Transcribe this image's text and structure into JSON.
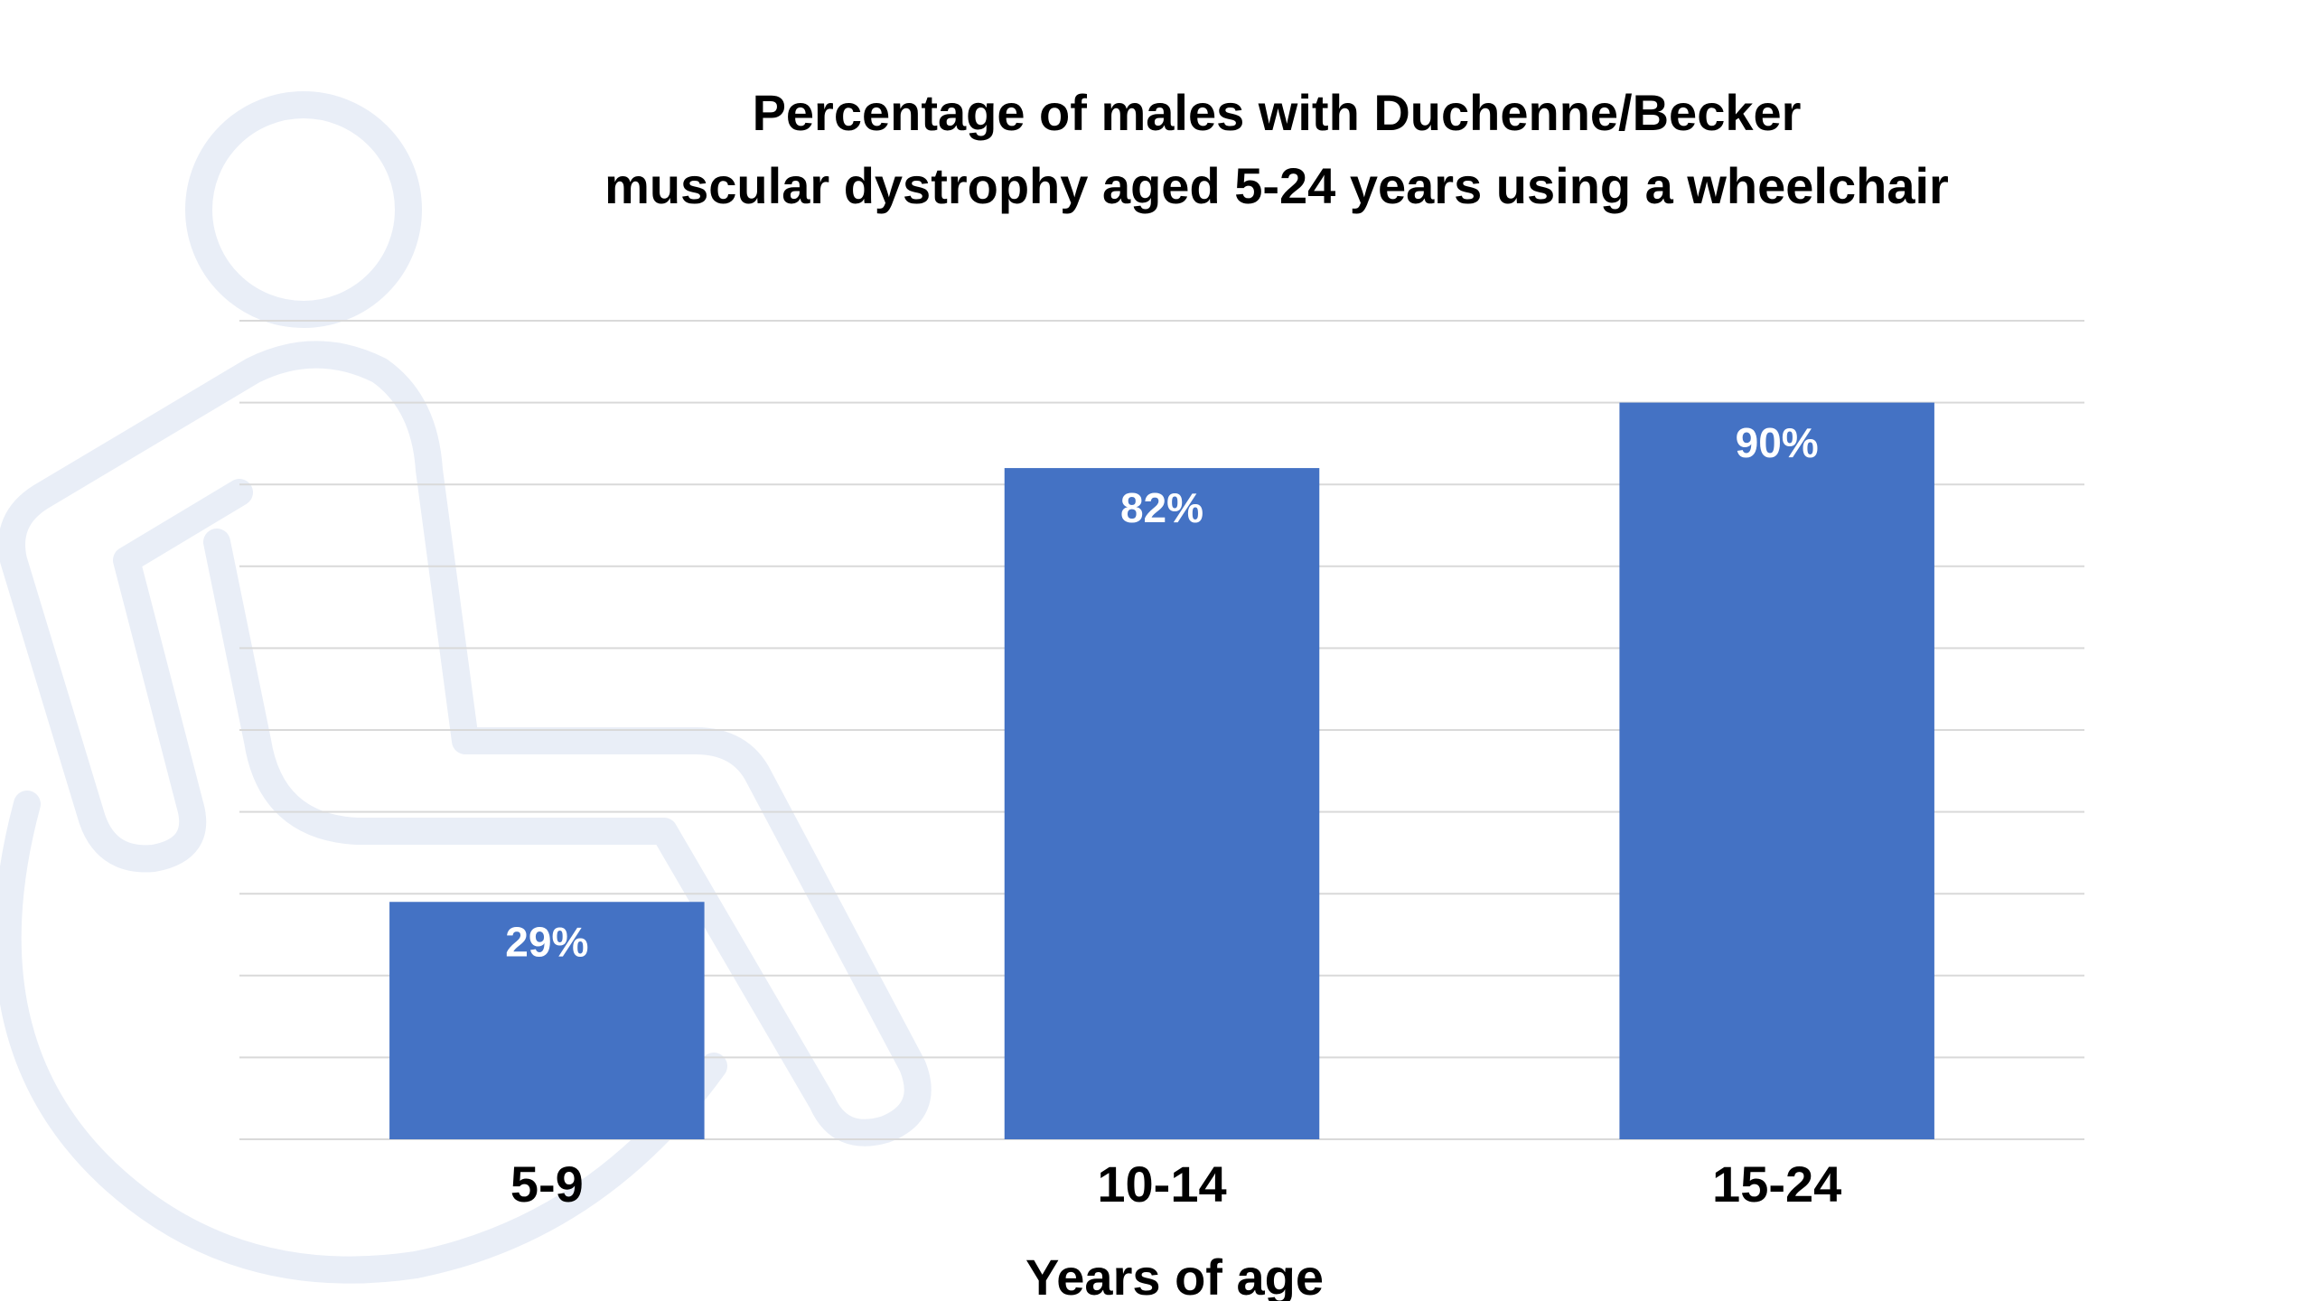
{
  "chart_data": {
    "type": "bar",
    "title": [
      "Percentage of males with Duchenne/Becker",
      "muscular dystrophy aged 5-24 years using a wheelchair"
    ],
    "categories": [
      "5-9",
      "10-14",
      "15-24"
    ],
    "values": [
      29,
      82,
      90
    ],
    "value_labels": [
      "29%",
      "82%",
      "90%"
    ],
    "color": "#4472c4",
    "x_label": "Years of age",
    "ylim": [
      0,
      100
    ],
    "yticks": [
      0,
      10,
      20,
      30,
      40,
      50,
      60,
      70,
      80,
      90,
      100
    ],
    "grid": true
  }
}
